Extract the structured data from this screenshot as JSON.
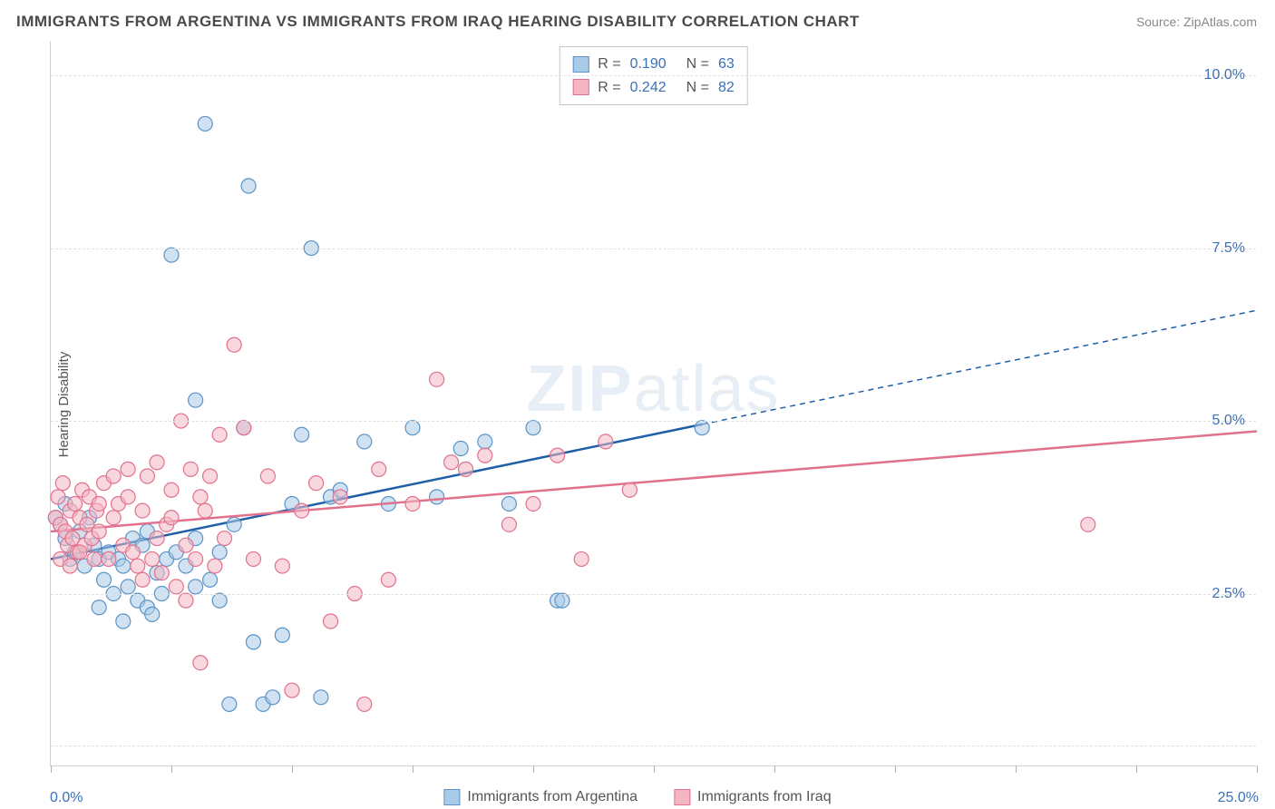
{
  "title": "IMMIGRANTS FROM ARGENTINA VS IMMIGRANTS FROM IRAQ HEARING DISABILITY CORRELATION CHART",
  "source": "Source: ZipAtlas.com",
  "watermark_left": "ZIP",
  "watermark_right": "atlas",
  "ylabel": "Hearing Disability",
  "chart": {
    "type": "scatter",
    "xlim": [
      0,
      25
    ],
    "ylim": [
      0,
      10.5
    ],
    "xtick_positions": [
      0,
      2.5,
      5,
      7.5,
      10,
      12.5,
      15,
      17.5,
      20,
      22.5,
      25
    ],
    "ytick_positions": [
      0.3,
      2.5,
      5.0,
      7.5,
      10.0
    ],
    "ytick_labels": [
      "",
      "2.5%",
      "5.0%",
      "7.5%",
      "10.0%"
    ],
    "x_axis_left_label": "0.0%",
    "x_axis_right_label": "25.0%",
    "grid_color": "#e0e0e0",
    "background_color": "#ffffff",
    "marker_radius": 8,
    "marker_stroke_width": 1.2,
    "trend_line_width": 2.5,
    "series": [
      {
        "name": "Immigrants from Argentina",
        "fill": "#a9cbe8",
        "stroke": "#5b93c6",
        "fill_opacity": 0.55,
        "R": "0.190",
        "N": "63",
        "trend": {
          "x1": 0,
          "y1": 3.0,
          "x2": 13.5,
          "y2": 4.95,
          "color": "#1f5fa8",
          "dash_extend_x2": 25,
          "dash_extend_y2": 6.6
        },
        "points": [
          [
            0.1,
            3.6
          ],
          [
            0.2,
            3.5
          ],
          [
            0.3,
            3.3
          ],
          [
            0.3,
            3.8
          ],
          [
            0.4,
            3.0
          ],
          [
            0.5,
            3.1
          ],
          [
            0.6,
            3.4
          ],
          [
            0.7,
            2.9
          ],
          [
            0.8,
            3.6
          ],
          [
            0.9,
            3.2
          ],
          [
            1.0,
            3.0
          ],
          [
            1.1,
            2.7
          ],
          [
            1.2,
            3.1
          ],
          [
            1.3,
            2.5
          ],
          [
            1.4,
            3.0
          ],
          [
            1.5,
            2.9
          ],
          [
            1.6,
            2.6
          ],
          [
            1.7,
            3.3
          ],
          [
            1.8,
            2.4
          ],
          [
            1.9,
            3.2
          ],
          [
            2.0,
            2.3
          ],
          [
            2.1,
            2.2
          ],
          [
            2.2,
            2.8
          ],
          [
            2.4,
            3.0
          ],
          [
            2.5,
            7.4
          ],
          [
            2.6,
            3.1
          ],
          [
            2.8,
            2.9
          ],
          [
            3.0,
            5.3
          ],
          [
            3.0,
            3.3
          ],
          [
            3.2,
            9.3
          ],
          [
            3.3,
            2.7
          ],
          [
            3.5,
            3.1
          ],
          [
            3.7,
            0.9
          ],
          [
            3.8,
            3.5
          ],
          [
            4.0,
            4.9
          ],
          [
            4.1,
            8.4
          ],
          [
            4.2,
            1.8
          ],
          [
            4.4,
            0.9
          ],
          [
            4.6,
            1.0
          ],
          [
            4.8,
            1.9
          ],
          [
            5.0,
            3.8
          ],
          [
            5.2,
            4.8
          ],
          [
            5.4,
            7.5
          ],
          [
            5.6,
            1.0
          ],
          [
            5.8,
            3.9
          ],
          [
            6.0,
            4.0
          ],
          [
            6.5,
            4.7
          ],
          [
            7.0,
            3.8
          ],
          [
            7.5,
            4.9
          ],
          [
            8.0,
            3.9
          ],
          [
            8.5,
            4.6
          ],
          [
            9.0,
            4.7
          ],
          [
            9.5,
            3.8
          ],
          [
            10.0,
            4.9
          ],
          [
            10.5,
            2.4
          ],
          [
            10.6,
            2.4
          ],
          [
            13.5,
            4.9
          ],
          [
            1.0,
            2.3
          ],
          [
            1.5,
            2.1
          ],
          [
            2.0,
            3.4
          ],
          [
            2.3,
            2.5
          ],
          [
            3.0,
            2.6
          ],
          [
            3.5,
            2.4
          ]
        ]
      },
      {
        "name": "Immigrants from Iraq",
        "fill": "#f4b6c3",
        "stroke": "#e1718c",
        "fill_opacity": 0.55,
        "R": "0.242",
        "N": "82",
        "trend": {
          "x1": 0,
          "y1": 3.4,
          "x2": 25,
          "y2": 4.85,
          "color": "#e1718c"
        },
        "points": [
          [
            0.1,
            3.6
          ],
          [
            0.15,
            3.9
          ],
          [
            0.2,
            3.5
          ],
          [
            0.25,
            4.1
          ],
          [
            0.3,
            3.4
          ],
          [
            0.35,
            3.2
          ],
          [
            0.4,
            3.7
          ],
          [
            0.45,
            3.3
          ],
          [
            0.5,
            3.8
          ],
          [
            0.55,
            3.1
          ],
          [
            0.6,
            3.6
          ],
          [
            0.65,
            4.0
          ],
          [
            0.7,
            3.2
          ],
          [
            0.75,
            3.5
          ],
          [
            0.8,
            3.9
          ],
          [
            0.85,
            3.3
          ],
          [
            0.9,
            3.0
          ],
          [
            0.95,
            3.7
          ],
          [
            1.0,
            3.4
          ],
          [
            1.1,
            4.1
          ],
          [
            1.2,
            3.0
          ],
          [
            1.3,
            3.6
          ],
          [
            1.4,
            3.8
          ],
          [
            1.5,
            3.2
          ],
          [
            1.6,
            4.3
          ],
          [
            1.7,
            3.1
          ],
          [
            1.8,
            2.9
          ],
          [
            1.9,
            3.7
          ],
          [
            2.0,
            4.2
          ],
          [
            2.1,
            3.0
          ],
          [
            2.2,
            4.4
          ],
          [
            2.3,
            2.8
          ],
          [
            2.4,
            3.5
          ],
          [
            2.5,
            4.0
          ],
          [
            2.6,
            2.6
          ],
          [
            2.7,
            5.0
          ],
          [
            2.8,
            3.2
          ],
          [
            2.9,
            4.3
          ],
          [
            3.0,
            3.0
          ],
          [
            3.1,
            1.5
          ],
          [
            3.2,
            3.7
          ],
          [
            3.3,
            4.2
          ],
          [
            3.4,
            2.9
          ],
          [
            3.5,
            4.8
          ],
          [
            3.6,
            3.3
          ],
          [
            3.8,
            6.1
          ],
          [
            4.0,
            4.9
          ],
          [
            4.2,
            3.0
          ],
          [
            4.5,
            4.2
          ],
          [
            4.8,
            2.9
          ],
          [
            5.0,
            1.1
          ],
          [
            5.2,
            3.7
          ],
          [
            5.5,
            4.1
          ],
          [
            5.8,
            2.1
          ],
          [
            6.0,
            3.9
          ],
          [
            6.3,
            2.5
          ],
          [
            6.5,
            0.9
          ],
          [
            6.8,
            4.3
          ],
          [
            7.0,
            2.7
          ],
          [
            7.5,
            3.8
          ],
          [
            8.0,
            5.6
          ],
          [
            8.3,
            4.4
          ],
          [
            8.6,
            4.3
          ],
          [
            9.0,
            4.5
          ],
          [
            9.5,
            3.5
          ],
          [
            10.0,
            3.8
          ],
          [
            10.5,
            4.5
          ],
          [
            11.0,
            3.0
          ],
          [
            11.5,
            4.7
          ],
          [
            12.0,
            4.0
          ],
          [
            21.5,
            3.5
          ],
          [
            0.2,
            3.0
          ],
          [
            0.4,
            2.9
          ],
          [
            0.6,
            3.1
          ],
          [
            1.0,
            3.8
          ],
          [
            1.3,
            4.2
          ],
          [
            1.6,
            3.9
          ],
          [
            1.9,
            2.7
          ],
          [
            2.2,
            3.3
          ],
          [
            2.5,
            3.6
          ],
          [
            2.8,
            2.4
          ],
          [
            3.1,
            3.9
          ]
        ]
      }
    ]
  },
  "legend_top": {
    "r_label": "R =",
    "n_label": "N ="
  },
  "legend_bottom": {
    "items": [
      {
        "label": "Immigrants from Argentina",
        "fill": "#a9cbe8",
        "stroke": "#5b93c6"
      },
      {
        "label": "Immigrants from Iraq",
        "fill": "#f4b6c3",
        "stroke": "#e1718c"
      }
    ]
  }
}
